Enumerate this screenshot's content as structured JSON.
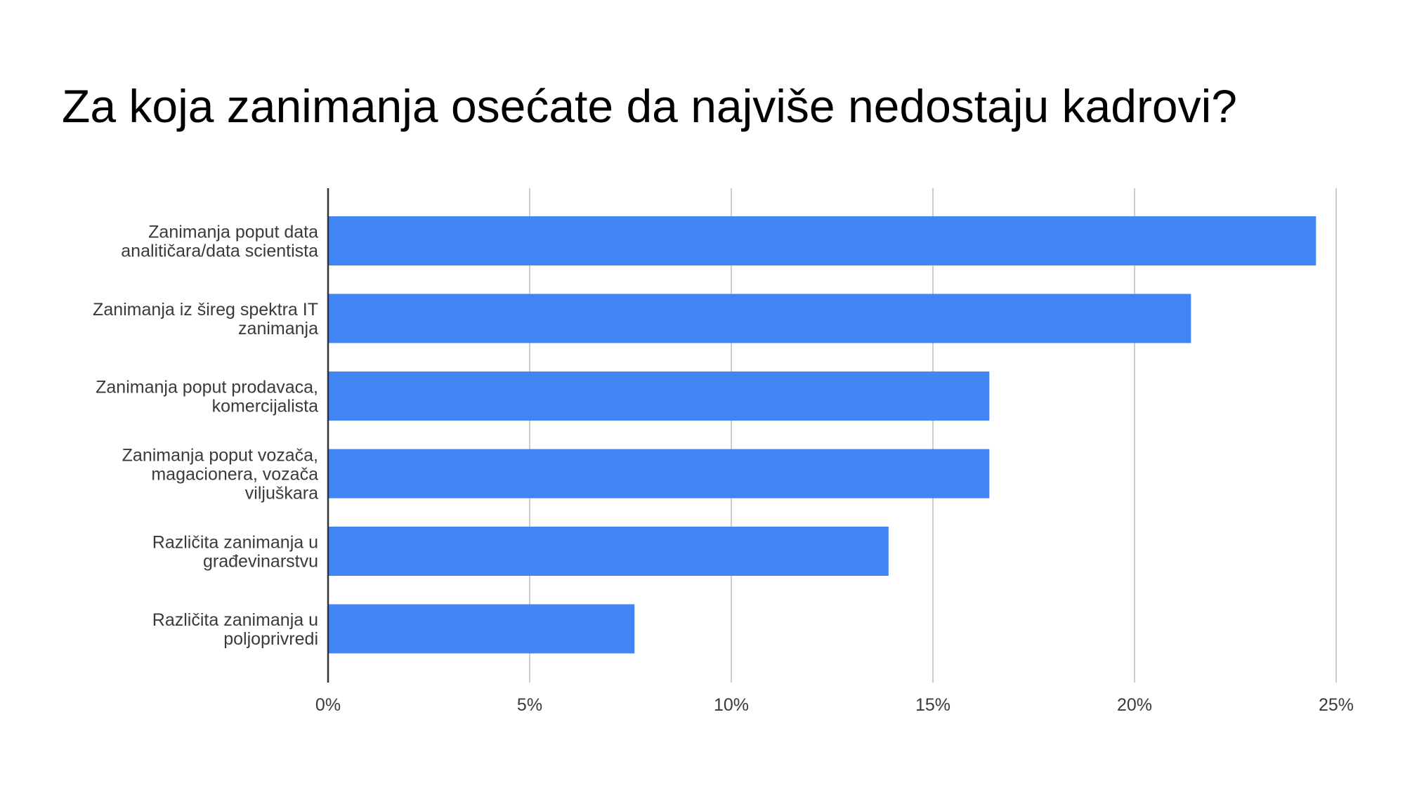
{
  "chart_data": {
    "type": "bar",
    "orientation": "horizontal",
    "title": "Za koja zanimanja osećate da najviše nedostaju kadrovi?",
    "xlabel": "",
    "ylabel": "",
    "categories": [
      [
        "Zanimanja poput data",
        "analitičara/data scientista"
      ],
      [
        "Zanimanja iz šireg spektra IT",
        "zanimanja"
      ],
      [
        "Zanimanja poput prodavaca,",
        "komercijalista"
      ],
      [
        "Zanimanja poput vozača,",
        "magacionera, vozača",
        "viljuškara"
      ],
      [
        "Različita zanimanja u",
        "građevinarstvu"
      ],
      [
        "Različita zanimanja u",
        "poljoprivredi"
      ]
    ],
    "values": [
      24.5,
      21.4,
      16.4,
      16.4,
      13.9,
      7.6
    ],
    "xlim": [
      0,
      25
    ],
    "ticks": [
      0,
      5,
      10,
      15,
      20,
      25
    ],
    "tick_labels": [
      "0%",
      "5%",
      "10%",
      "15%",
      "20%",
      "25%"
    ],
    "grid": "vertical",
    "legend": "none",
    "bar_color": "#4285f4",
    "grid_color": "#cccccc",
    "axis_color": "#333333"
  }
}
